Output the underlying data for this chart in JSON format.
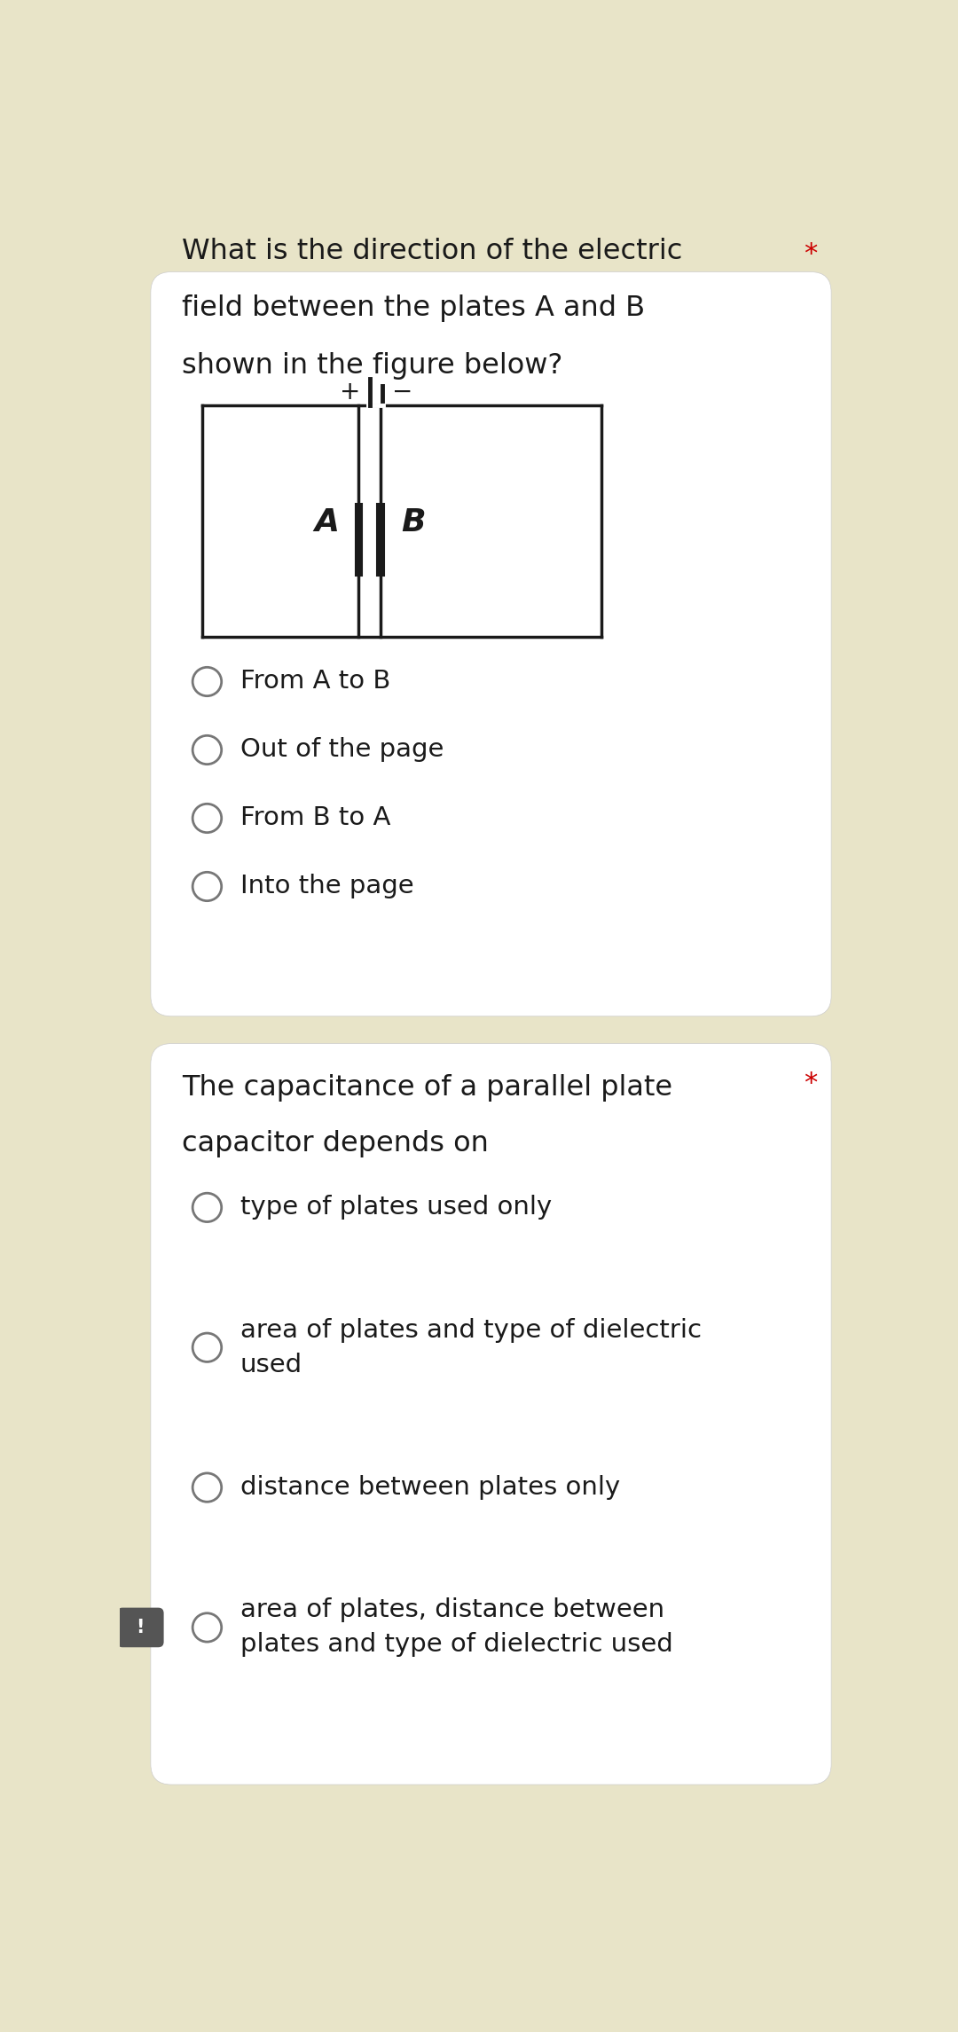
{
  "bg_outer": "#e8e4c8",
  "bg_card": "#ffffff",
  "text_color": "#1a1a1a",
  "circle_color": "#777777",
  "red_star_color": "#cc0000",
  "q1_question_line1": "What is the direction of the electric",
  "q1_question_line2": "field between the plates A and B",
  "q1_question_line3": "shown in the figure below?",
  "q1_options": [
    "From A to B",
    "Out of the page",
    "From B to A",
    "Into the page"
  ],
  "q2_question_line1": "The capacitance of a parallel plate",
  "q2_question_line2": "capacitor depends on",
  "q2_star": "*",
  "q2_options": [
    "type of plates used only",
    "area of plates and type of dielectric\nused",
    "distance between plates only",
    "area of plates, distance between\nplates and type of dielectric used"
  ],
  "font_size_question": 23,
  "font_size_option": 21
}
